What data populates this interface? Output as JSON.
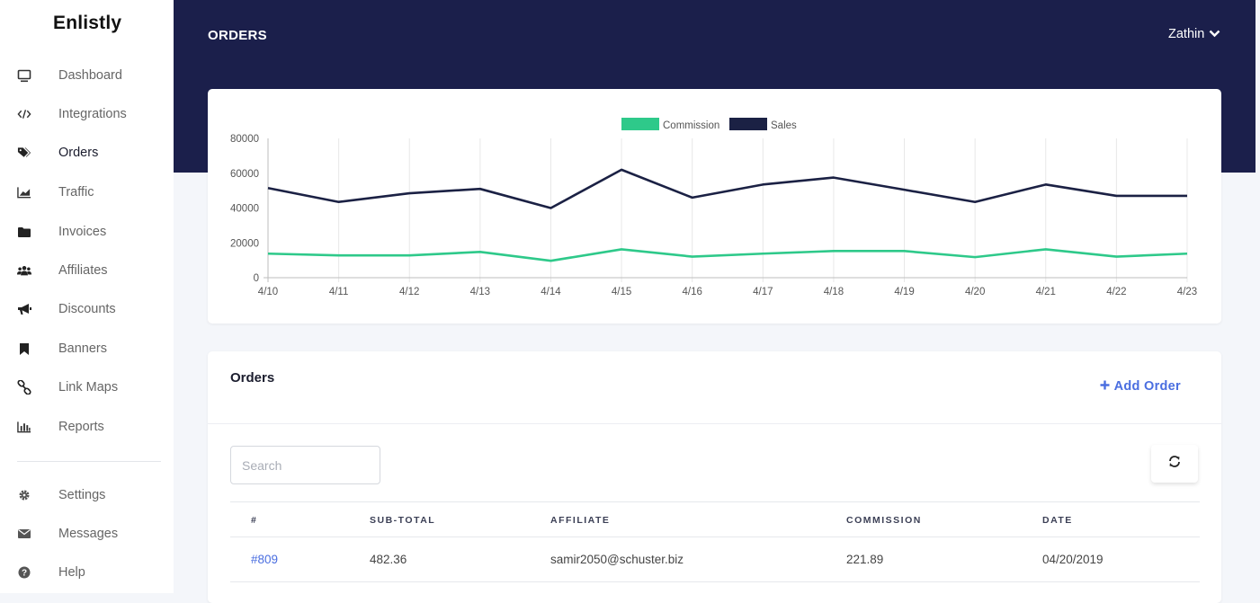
{
  "app": {
    "brand": "Enlistly"
  },
  "sidebar": {
    "items": [
      {
        "label": "Dashboard",
        "icon": "monitor-icon"
      },
      {
        "label": "Integrations",
        "icon": "code-icon"
      },
      {
        "label": "Orders",
        "icon": "tags-icon",
        "active": true
      },
      {
        "label": "Traffic",
        "icon": "area-chart-icon"
      },
      {
        "label": "Invoices",
        "icon": "folder-icon"
      },
      {
        "label": "Affiliates",
        "icon": "users-icon"
      },
      {
        "label": "Discounts",
        "icon": "bullhorn-icon"
      },
      {
        "label": "Banners",
        "icon": "bookmark-icon"
      },
      {
        "label": "Link Maps",
        "icon": "link-icon"
      },
      {
        "label": "Reports",
        "icon": "bar-chart-icon"
      }
    ],
    "bottom_items": [
      {
        "label": "Settings",
        "icon": "gear-icon"
      },
      {
        "label": "Messages",
        "icon": "envelope-icon"
      },
      {
        "label": "Help",
        "icon": "help-circle-icon"
      }
    ]
  },
  "header": {
    "title": "ORDERS",
    "user": "Zathin"
  },
  "chart_data": {
    "type": "line",
    "x": [
      "4/10",
      "4/11",
      "4/12",
      "4/13",
      "4/14",
      "4/15",
      "4/16",
      "4/17",
      "4/18",
      "4/19",
      "4/20",
      "4/21",
      "4/22",
      "4/23"
    ],
    "series": [
      {
        "name": "Commission",
        "color": "#2ec98a",
        "values": [
          13800,
          12800,
          12800,
          14800,
          9700,
          16300,
          12100,
          13800,
          15300,
          15300,
          11800,
          16300,
          12100,
          13800
        ]
      },
      {
        "name": "Sales",
        "color": "#1b2144",
        "values": [
          51500,
          43500,
          48500,
          51000,
          40000,
          62000,
          46000,
          53500,
          57500,
          50500,
          43500,
          53500,
          47000,
          47000
        ]
      }
    ],
    "ylim": [
      0,
      80000
    ],
    "yticks": [
      "0",
      "20000",
      "40000",
      "60000",
      "80000"
    ],
    "grid": "vertical",
    "legend": "top-center"
  },
  "orders": {
    "title": "Orders",
    "add_label": "Add Order",
    "search_placeholder": "Search",
    "columns": [
      "#",
      "SUB-TOTAL",
      "AFFILIATE",
      "COMMISSION",
      "DATE"
    ],
    "rows": [
      {
        "id": "#809",
        "subtotal": "482.36",
        "affiliate": "samir2050@schuster.biz",
        "commission": "221.89",
        "date": "04/20/2019"
      }
    ]
  },
  "colors": {
    "header_bg": "#1b1f4b",
    "accent": "#4a6ee0",
    "commission": "#2ec98a",
    "sales": "#1b2144"
  }
}
